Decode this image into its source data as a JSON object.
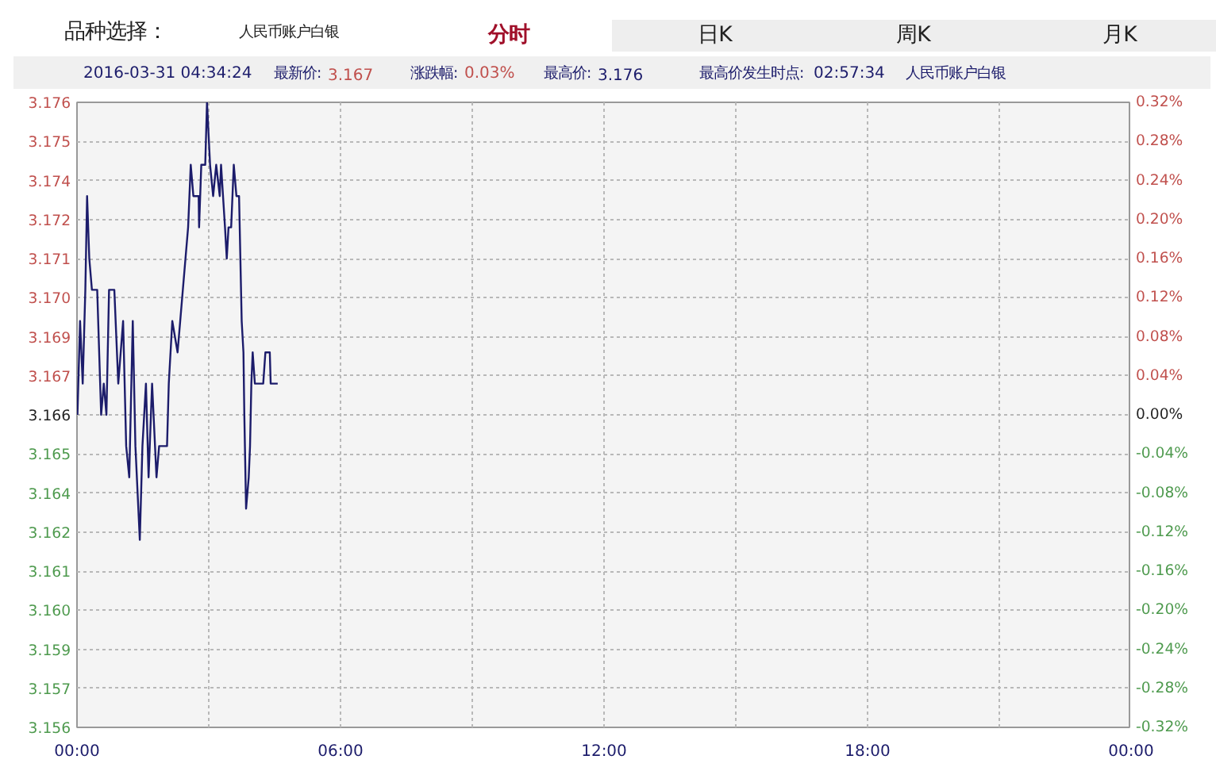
{
  "chart_data": {
    "type": "line",
    "annotations": [
      "品种选择：",
      "人民币账户白银",
      "分时",
      "日K",
      "周K",
      "月K",
      "2016-03-31 04:34:24",
      "最新价:",
      "3.167",
      "涨跌幅:",
      "0.03%",
      "最高价:",
      "3.176",
      "最高价发生时点:",
      "02:57:34",
      "人民币账户白银"
    ],
    "series": [
      {
        "color": "#1c1c6b",
        "x": [
          0.01,
          0.07,
          0.13,
          0.19,
          0.23,
          0.28,
          0.34,
          0.46,
          0.55,
          0.61,
          0.67,
          0.73,
          0.85,
          0.94,
          1.05,
          1.12,
          1.19,
          1.27,
          1.33,
          1.43,
          1.49,
          1.57,
          1.63,
          1.71,
          1.81,
          1.87,
          2.05,
          2.09,
          2.17,
          2.29,
          2.35,
          2.41,
          2.47,
          2.53,
          2.59,
          2.65,
          2.77,
          2.78,
          2.83,
          2.92,
          2.96,
          3.03,
          3.1,
          3.17,
          3.25,
          3.28,
          3.37,
          3.41,
          3.45,
          3.51,
          3.57,
          3.63,
          3.69,
          3.75,
          3.79,
          3.81,
          3.85,
          3.91,
          3.94,
          3.97,
          4.0,
          4.05,
          4.24,
          4.29,
          4.39,
          4.41,
          4.57
        ],
        "values": [
          3.166,
          3.169,
          3.167,
          3.17,
          3.173,
          3.171,
          3.17,
          3.17,
          3.166,
          3.167,
          3.166,
          3.17,
          3.17,
          3.167,
          3.169,
          3.165,
          3.164,
          3.169,
          3.165,
          3.162,
          3.165,
          3.167,
          3.164,
          3.167,
          3.164,
          3.165,
          3.165,
          3.167,
          3.169,
          3.168,
          3.169,
          3.17,
          3.171,
          3.172,
          3.174,
          3.173,
          3.173,
          3.172,
          3.174,
          3.174,
          3.176,
          3.174,
          3.173,
          3.174,
          3.173,
          3.174,
          3.172,
          3.171,
          3.172,
          3.172,
          3.174,
          3.173,
          3.173,
          3.169,
          3.168,
          3.166,
          3.163,
          3.164,
          3.165,
          3.167,
          3.168,
          3.167,
          3.167,
          3.168,
          3.168,
          3.167,
          3.167
        ]
      }
    ],
    "xlim": [
      0,
      24
    ],
    "xticks": [
      {
        "value": 0,
        "label": "00:00"
      },
      {
        "value": 3,
        "label": null
      },
      {
        "value": 6,
        "label": "06:00"
      },
      {
        "value": 9,
        "label": null
      },
      {
        "value": 12,
        "label": "12:00"
      },
      {
        "value": 15,
        "label": null
      },
      {
        "value": 18,
        "label": "18:00"
      },
      {
        "value": 21,
        "label": null
      },
      {
        "value": 24,
        "label": "00:00"
      }
    ],
    "ylim": [
      3.156,
      3.176
    ],
    "yticks": [
      {
        "value": 3.156,
        "label": "3.156"
      },
      {
        "value": 3.15725,
        "label": "3.157"
      },
      {
        "value": 3.1585,
        "label": "3.159"
      },
      {
        "value": 3.15975,
        "label": "3.160"
      },
      {
        "value": 3.161,
        "label": "3.161"
      },
      {
        "value": 3.16225,
        "label": "3.162"
      },
      {
        "value": 3.1635,
        "label": "3.164"
      },
      {
        "value": 3.16475,
        "label": "3.165"
      },
      {
        "value": 3.166,
        "label": "3.166"
      },
      {
        "value": 3.16725,
        "label": "3.167"
      },
      {
        "value": 3.1685,
        "label": "3.169"
      },
      {
        "value": 3.16975,
        "label": "3.170"
      },
      {
        "value": 3.171,
        "label": "3.171"
      },
      {
        "value": 3.17225,
        "label": "3.172"
      },
      {
        "value": 3.1735,
        "label": "3.174"
      },
      {
        "value": 3.17475,
        "label": "3.175"
      },
      {
        "value": 3.176,
        "label": "3.176"
      }
    ],
    "y2lim": [
      -0.32,
      0.32
    ],
    "y2ticks": [
      {
        "value": -0.32,
        "label": "-0.32%"
      },
      {
        "value": -0.28,
        "label": "-0.28%"
      },
      {
        "value": -0.24,
        "label": "-0.24%"
      },
      {
        "value": -0.2,
        "label": "-0.20%"
      },
      {
        "value": -0.16,
        "label": "-0.16%"
      },
      {
        "value": -0.12,
        "label": "-0.12%"
      },
      {
        "value": -0.08,
        "label": "-0.08%"
      },
      {
        "value": -0.04,
        "label": "-0.04%"
      },
      {
        "value": 0,
        "label": "0.00%"
      },
      {
        "value": 0.04,
        "label": "0.04%"
      },
      {
        "value": 0.08,
        "label": "0.08%"
      },
      {
        "value": 0.12,
        "label": "0.12%"
      },
      {
        "value": 0.16,
        "label": "0.16%"
      },
      {
        "value": 0.2,
        "label": "0.20%"
      },
      {
        "value": 0.24,
        "label": "0.24%"
      },
      {
        "value": 0.28,
        "label": "0.28%"
      },
      {
        "value": 0.32,
        "label": "0.32%"
      }
    ],
    "grid": true,
    "line_style": "solid"
  }
}
